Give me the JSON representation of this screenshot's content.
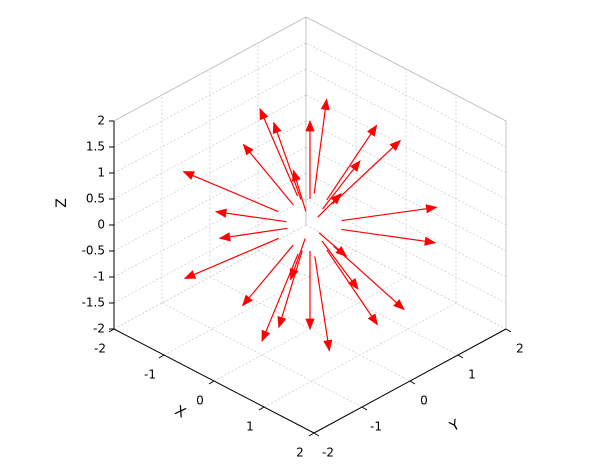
{
  "chart_data": {
    "type": "quiver3",
    "xlabel": "X",
    "ylabel": "Y",
    "zlabel": "Z",
    "color": "#ff0000",
    "grid": true,
    "xlim": [
      -2,
      2
    ],
    "ylim": [
      -2,
      2
    ],
    "zlim": [
      -2,
      2
    ],
    "xticks": [
      -2,
      -1,
      0,
      1,
      2
    ],
    "yticks": [
      -2,
      -1,
      0,
      1,
      2
    ],
    "zticks": [
      -2,
      -1.5,
      -1,
      -0.5,
      0,
      0.5,
      1,
      1.5,
      2
    ],
    "x": [
      0.25,
      0.125,
      -0.125,
      -0.25,
      -0.125,
      0.125,
      0.407,
      0,
      -0.407,
      -0.407,
      0,
      0.407,
      0.47,
      0.235,
      -0.235,
      -0.47,
      -0.235,
      0.235,
      0.217,
      0,
      -0.217,
      -0.217,
      0,
      0.217,
      0,
      0
    ],
    "y": [
      0,
      0.217,
      0.217,
      0,
      -0.217,
      -0.217,
      0.235,
      0.47,
      0.235,
      -0.235,
      -0.47,
      -0.235,
      0,
      0.407,
      0.407,
      0,
      -0.407,
      -0.407,
      0.125,
      0.25,
      0.125,
      -0.125,
      -0.25,
      -0.125,
      0,
      0
    ],
    "z": [
      0.433,
      0.433,
      0.433,
      0.433,
      0.433,
      0.433,
      0.171,
      0.171,
      0.171,
      0.171,
      0.171,
      0.171,
      -0.171,
      -0.171,
      -0.171,
      -0.171,
      -0.171,
      -0.171,
      -0.433,
      -0.433,
      -0.433,
      -0.433,
      -0.433,
      -0.433,
      0.5,
      -0.5
    ],
    "u": [
      0.75,
      0.375,
      -0.375,
      -0.75,
      -0.375,
      0.375,
      1.221,
      0,
      -1.221,
      -1.221,
      0,
      1.221,
      1.41,
      0.705,
      -0.705,
      -1.41,
      -0.705,
      0.705,
      0.65,
      0,
      -0.65,
      -0.65,
      0,
      0.65,
      0,
      0
    ],
    "v": [
      0,
      0.65,
      0.65,
      0,
      -0.65,
      -0.65,
      0.705,
      1.41,
      0.705,
      -0.705,
      -1.41,
      -0.705,
      0,
      1.221,
      1.221,
      0,
      -1.221,
      -1.221,
      0.375,
      0.75,
      0.375,
      -0.375,
      -0.75,
      -0.375,
      0,
      0
    ],
    "w": [
      1.299,
      1.299,
      1.299,
      1.299,
      1.299,
      1.299,
      0.513,
      0.513,
      0.513,
      0.513,
      0.513,
      0.513,
      -0.513,
      -0.513,
      -0.513,
      -0.513,
      -0.513,
      -0.513,
      -1.299,
      -1.299,
      -1.299,
      -1.299,
      -1.299,
      -1.299,
      1.5,
      -1.5
    ]
  }
}
